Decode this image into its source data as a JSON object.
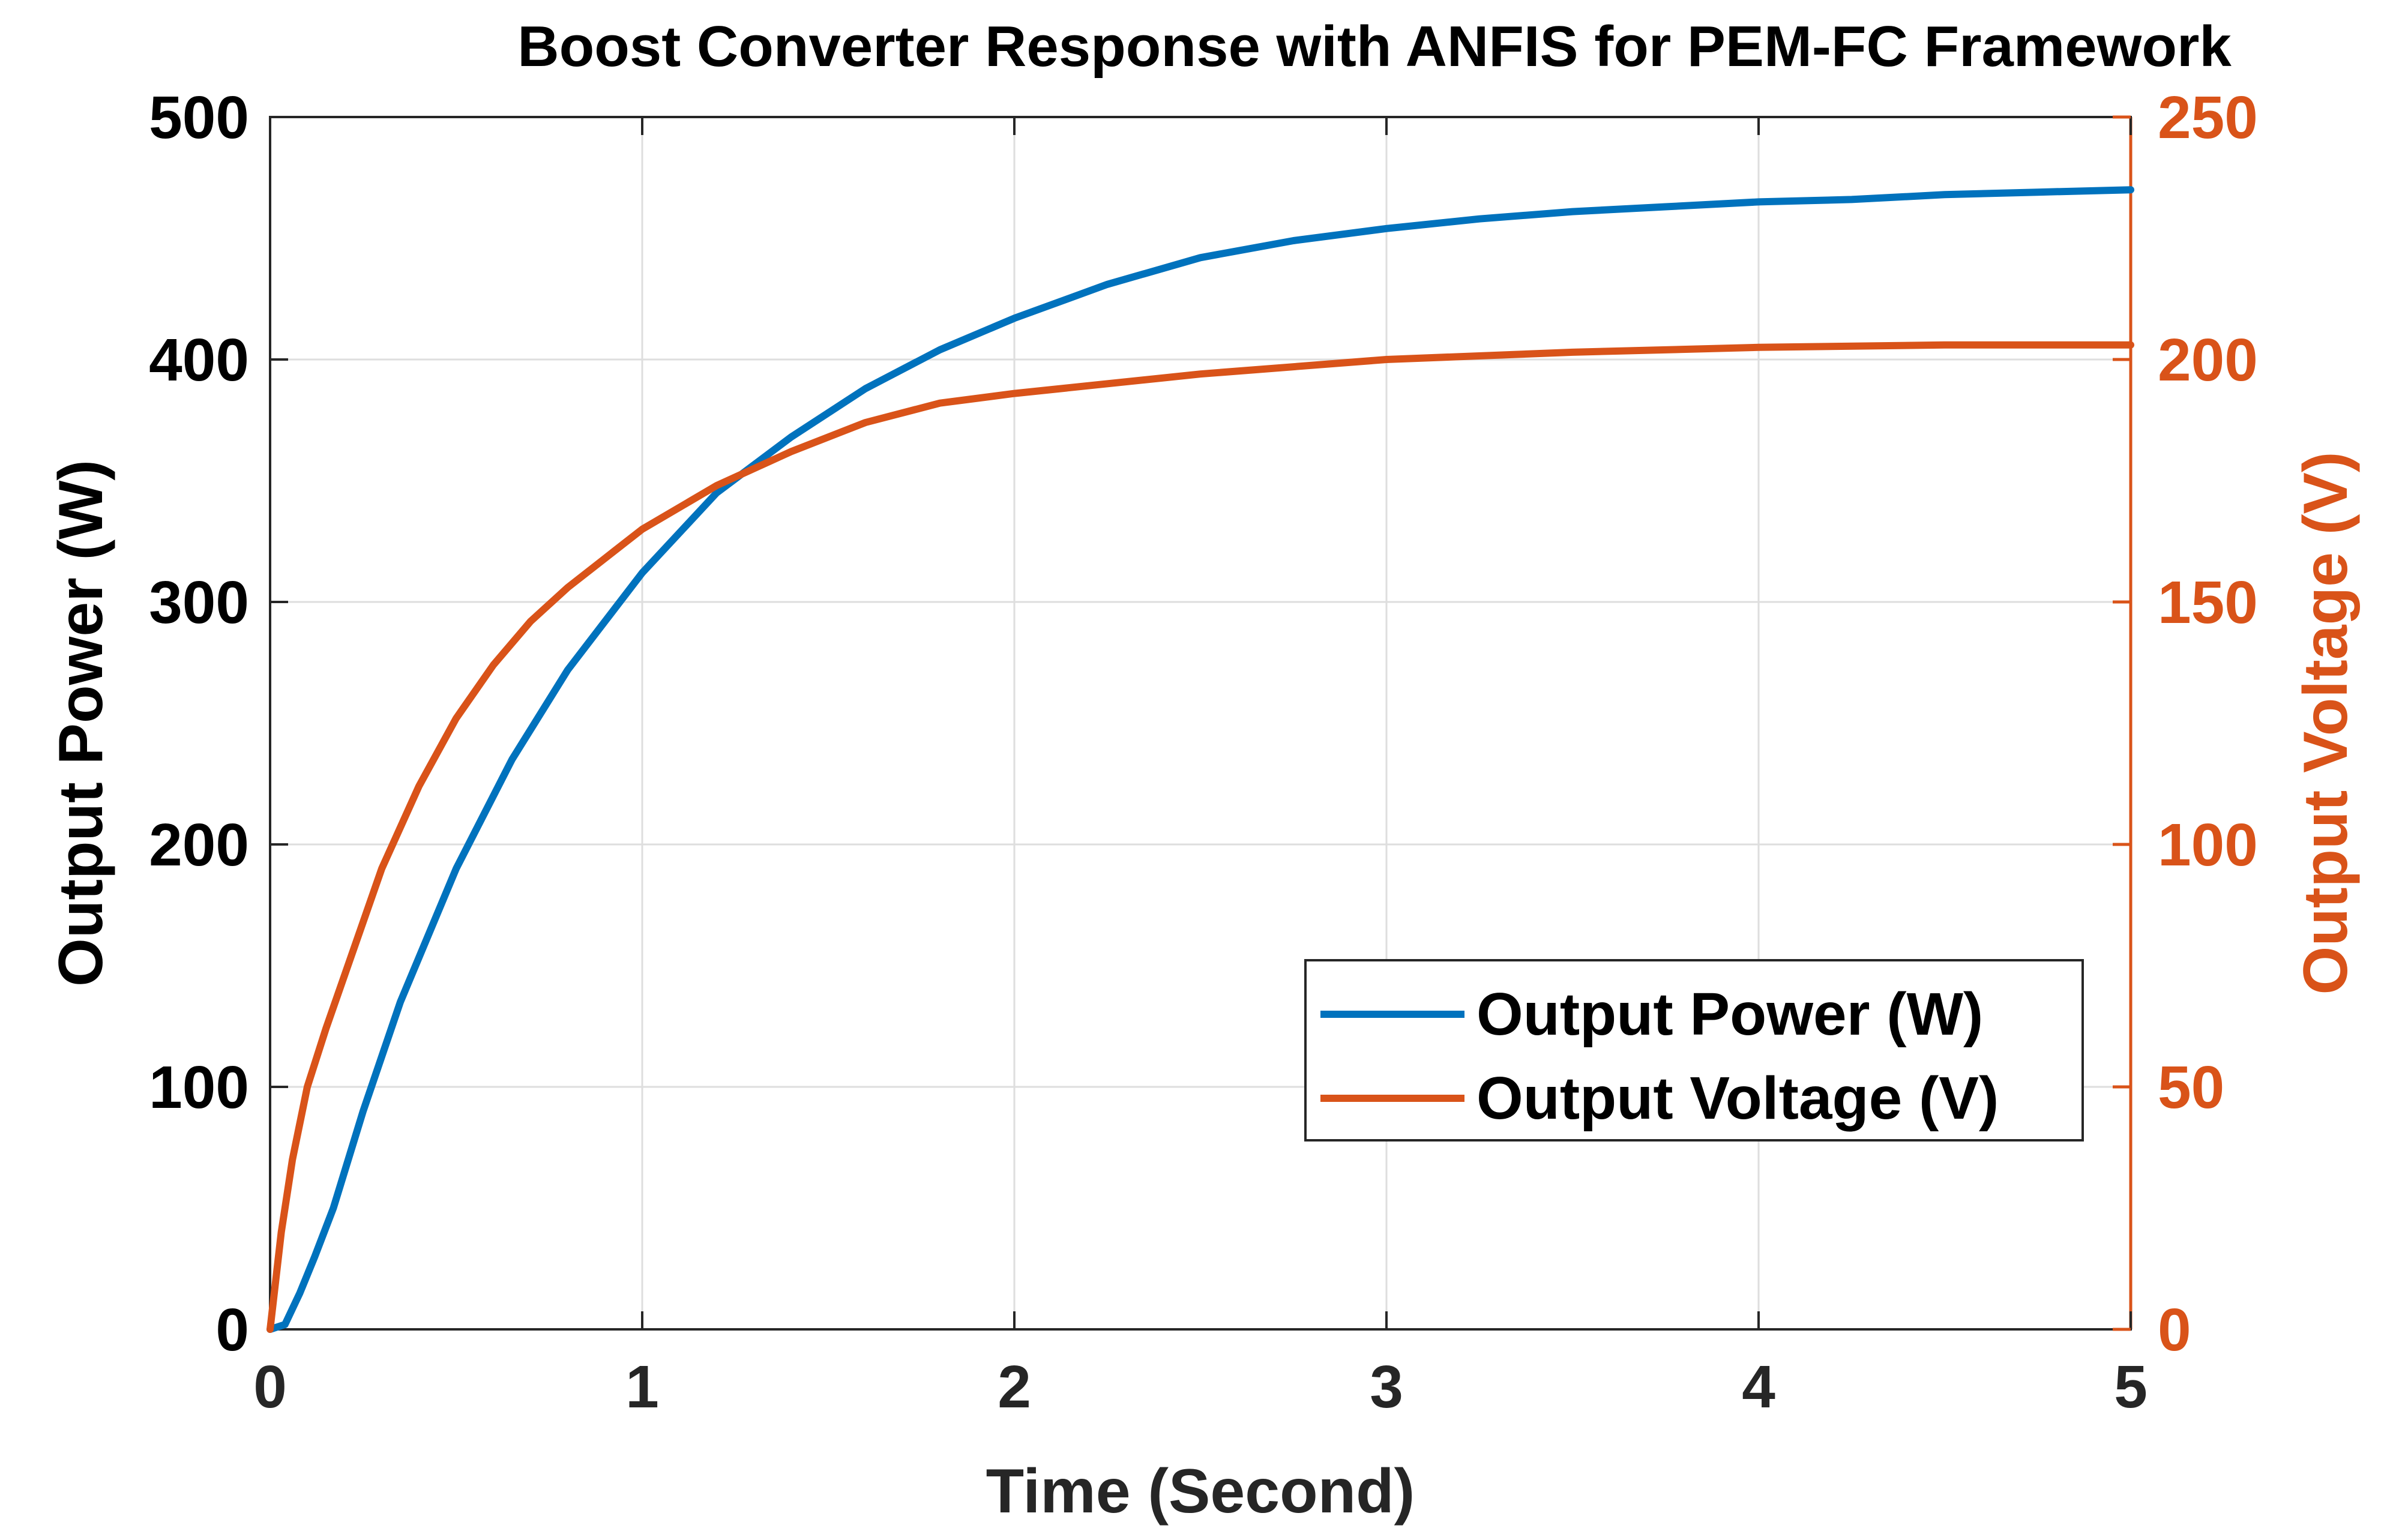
{
  "chart_data": {
    "type": "line",
    "title": "Boost Converter Response with ANFIS for PEM-FC Framework",
    "xlabel": "Time (Second)",
    "ylabel_left": "Output Power (W)",
    "ylabel_right": "Output Voltage (V)",
    "xlim": [
      0,
      5
    ],
    "ylim_left": [
      0,
      500
    ],
    "ylim_right": [
      0,
      250
    ],
    "x_ticks": [
      "0",
      "1",
      "2",
      "3",
      "4",
      "5"
    ],
    "y_ticks_left": [
      "0",
      "100",
      "200",
      "300",
      "400",
      "500"
    ],
    "y_ticks_right": [
      "0",
      "50",
      "100",
      "150",
      "200",
      "250"
    ],
    "grid": true,
    "legend_position": "bottom-right",
    "colors": {
      "power": "#0072BD",
      "voltage": "#D95319",
      "axis": "#262626",
      "grid": "#dedede"
    },
    "series": [
      {
        "name": "Output Power (W)",
        "axis": "left",
        "color": "#0072BD",
        "x": [
          0,
          0.04,
          0.08,
          0.12,
          0.17,
          0.25,
          0.35,
          0.5,
          0.65,
          0.8,
          1.0,
          1.2,
          1.4,
          1.6,
          1.8,
          2.0,
          2.25,
          2.5,
          2.75,
          3.0,
          3.25,
          3.5,
          3.75,
          4.0,
          4.25,
          4.5,
          4.75,
          5.0
        ],
        "values": [
          0,
          2,
          15,
          30,
          50,
          90,
          135,
          190,
          235,
          272,
          312,
          345,
          368,
          388,
          404,
          417,
          431,
          442,
          449,
          454,
          458,
          461,
          463,
          465,
          466,
          468,
          469,
          470
        ]
      },
      {
        "name": "Output Voltage (V)",
        "axis": "right",
        "color": "#D95319",
        "x": [
          0,
          0.03,
          0.06,
          0.1,
          0.15,
          0.2,
          0.3,
          0.4,
          0.5,
          0.6,
          0.7,
          0.8,
          0.9,
          1.0,
          1.2,
          1.4,
          1.6,
          1.8,
          2.0,
          2.5,
          3.0,
          3.5,
          4.0,
          4.5,
          5.0
        ],
        "values": [
          0,
          20,
          35,
          50,
          62,
          73,
          95,
          112,
          126,
          137,
          146,
          153,
          159,
          165,
          174,
          181,
          187,
          191,
          193,
          197,
          200,
          201.5,
          202.5,
          203,
          203
        ]
      }
    ]
  }
}
